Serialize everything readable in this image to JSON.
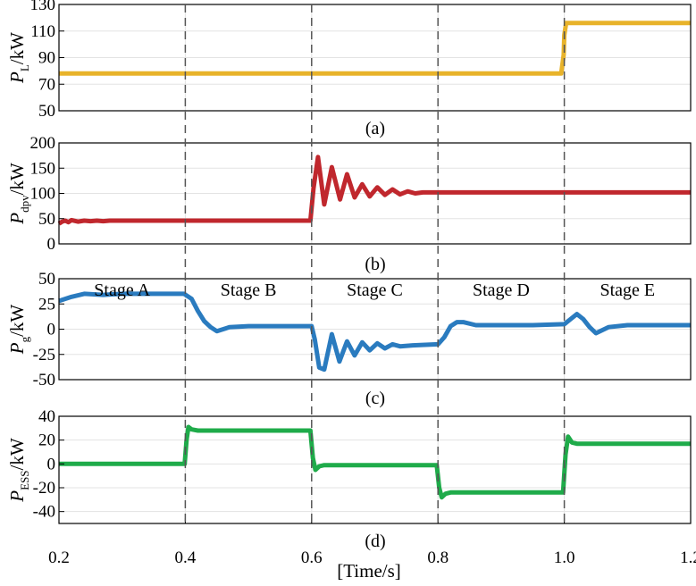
{
  "chart_data": [
    {
      "id": "a",
      "type": "line",
      "caption": "(a)",
      "ylabel": {
        "main": "P",
        "sub": "L",
        "unit": "/kW"
      },
      "ylim": [
        50,
        130
      ],
      "yticks": [
        50,
        70,
        90,
        110,
        130
      ],
      "xlim": [
        0.2,
        1.2
      ],
      "grid": true,
      "series": [
        {
          "color": "#E8B32A",
          "x": [
            0.2,
            0.995,
            0.999,
            1.0,
            1.003,
            1.2
          ],
          "y": [
            78,
            78,
            92,
            107,
            116,
            116
          ]
        }
      ]
    },
    {
      "id": "b",
      "type": "line",
      "caption": "(b)",
      "ylabel": {
        "main": "P",
        "sub": "dpv",
        "unit": "/kW"
      },
      "ylim": [
        0,
        200
      ],
      "yticks": [
        0,
        50,
        100,
        150,
        200
      ],
      "xlim": [
        0.2,
        1.2
      ],
      "grid": true,
      "series": [
        {
          "color": "#C0272D",
          "x": [
            0.2,
            0.205,
            0.21,
            0.215,
            0.22,
            0.23,
            0.24,
            0.25,
            0.26,
            0.27,
            0.28,
            0.3,
            0.4,
            0.5,
            0.598,
            0.603,
            0.61,
            0.62,
            0.632,
            0.645,
            0.656,
            0.668,
            0.68,
            0.692,
            0.704,
            0.716,
            0.728,
            0.74,
            0.752,
            0.764,
            0.776,
            0.79,
            0.8,
            0.9,
            1.0,
            1.1,
            1.2
          ],
          "y": [
            40,
            44,
            46,
            43,
            47,
            44,
            46,
            45,
            46,
            45,
            46,
            46,
            46,
            46,
            46,
            110,
            172,
            78,
            152,
            88,
            138,
            92,
            118,
            94,
            112,
            97,
            108,
            98,
            104,
            100,
            102,
            102,
            102,
            102,
            102,
            102,
            102
          ]
        }
      ]
    },
    {
      "id": "c",
      "type": "line",
      "caption": "(c)",
      "ylabel": {
        "main": "P",
        "sub": "g",
        "unit": "/kW"
      },
      "ylim": [
        -50,
        50
      ],
      "yticks": [
        -50,
        -25,
        0,
        25,
        50
      ],
      "xlim": [
        0.2,
        1.2
      ],
      "grid": true,
      "stages": [
        {
          "label": "Stage A",
          "x": 0.3
        },
        {
          "label": "Stage B",
          "x": 0.5
        },
        {
          "label": "Stage C",
          "x": 0.7
        },
        {
          "label": "Stage D",
          "x": 0.9
        },
        {
          "label": "Stage E",
          "x": 1.1
        }
      ],
      "series": [
        {
          "color": "#2A7BBF",
          "x": [
            0.2,
            0.22,
            0.24,
            0.27,
            0.3,
            0.35,
            0.398,
            0.41,
            0.42,
            0.43,
            0.44,
            0.45,
            0.47,
            0.5,
            0.55,
            0.6,
            0.605,
            0.612,
            0.62,
            0.632,
            0.644,
            0.656,
            0.668,
            0.68,
            0.692,
            0.704,
            0.716,
            0.728,
            0.74,
            0.76,
            0.8,
            0.81,
            0.82,
            0.83,
            0.84,
            0.86,
            0.9,
            0.95,
            1.0,
            1.01,
            1.02,
            1.03,
            1.04,
            1.05,
            1.07,
            1.1,
            1.15,
            1.2
          ],
          "y": [
            28,
            32,
            35,
            34,
            35,
            35,
            35,
            30,
            18,
            8,
            2,
            -2,
            2,
            3,
            3,
            3,
            -10,
            -38,
            -40,
            -5,
            -32,
            -12,
            -26,
            -13,
            -21,
            -14,
            -19,
            -15,
            -17,
            -16,
            -15,
            -8,
            3,
            7,
            7,
            4,
            4,
            4,
            5,
            10,
            15,
            10,
            2,
            -4,
            2,
            4,
            4,
            4
          ]
        }
      ]
    },
    {
      "id": "d",
      "type": "line",
      "caption": "(d)",
      "ylabel": {
        "main": "P",
        "sub": "ESS",
        "unit": "/kW"
      },
      "ylim": [
        -50,
        40
      ],
      "yticks": [
        -40,
        -20,
        0,
        20,
        40
      ],
      "xlim": [
        0.2,
        1.2
      ],
      "xticks": [
        0.2,
        0.4,
        0.6,
        0.8,
        1.0,
        1.2
      ],
      "xticklabels": [
        "0.2",
        "0.4",
        "0.6",
        "0.8",
        "1.0",
        "1.2"
      ],
      "xlabel": "[Time/s]",
      "grid": true,
      "series": [
        {
          "color": "#1FAB4A",
          "x": [
            0.2,
            0.399,
            0.402,
            0.405,
            0.41,
            0.42,
            0.5,
            0.598,
            0.602,
            0.606,
            0.612,
            0.62,
            0.7,
            0.798,
            0.802,
            0.806,
            0.812,
            0.82,
            0.9,
            0.998,
            1.002,
            1.006,
            1.012,
            1.02,
            1.1,
            1.2
          ],
          "y": [
            0,
            0,
            20,
            31,
            29,
            28,
            28,
            28,
            5,
            -5,
            -2,
            -1,
            -1,
            -1,
            -20,
            -28,
            -25,
            -24,
            -24,
            -24,
            8,
            23,
            18,
            17,
            17,
            17
          ]
        }
      ]
    }
  ]
}
